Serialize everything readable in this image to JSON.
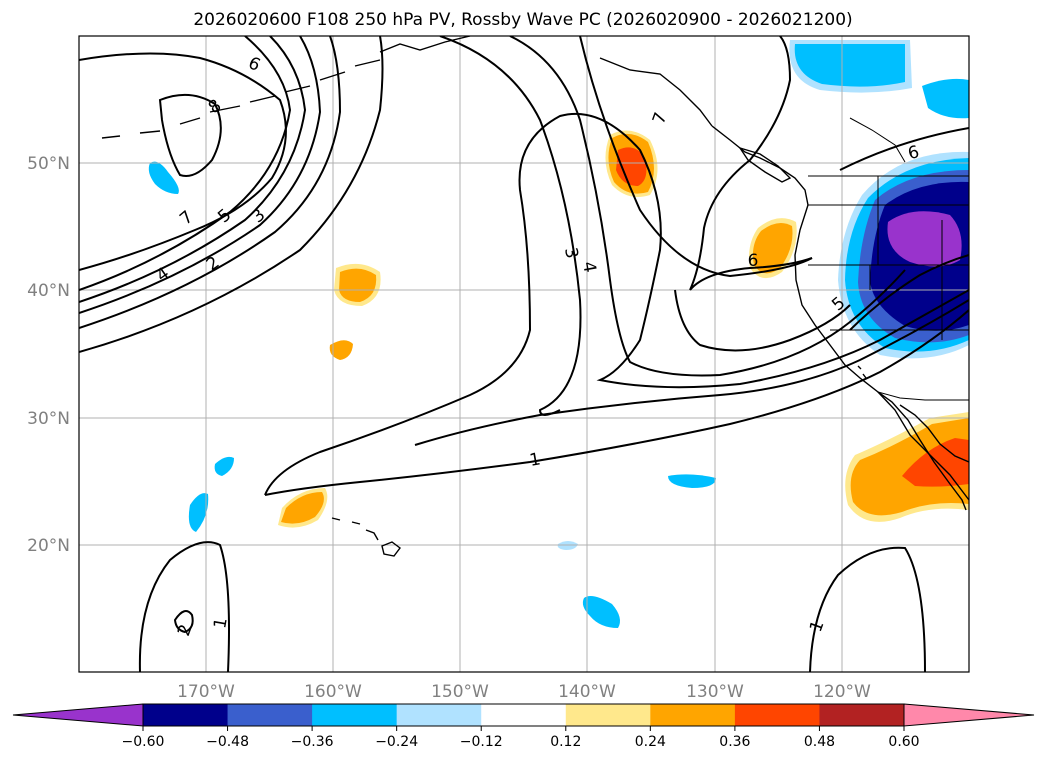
{
  "chart_data": {
    "type": "contour_map",
    "title": "2026020600 F108 250 hPa PV, Rossby Wave PC (2026020900 - 2026021200)",
    "projection": "plate carree",
    "lon_range": [
      -180,
      -110
    ],
    "lat_range": [
      10,
      60
    ],
    "x_ticks": [
      {
        "lon": -170,
        "label": "170°W"
      },
      {
        "lon": -160,
        "label": "160°W"
      },
      {
        "lon": -150,
        "label": "150°W"
      },
      {
        "lon": -140,
        "label": "140°W"
      },
      {
        "lon": -130,
        "label": "130°W"
      },
      {
        "lon": -120,
        "label": "120°W"
      }
    ],
    "y_ticks": [
      {
        "lat": 50,
        "label": "50°N"
      },
      {
        "lat": 40,
        "label": "40°N"
      },
      {
        "lat": 30,
        "label": "30°N"
      },
      {
        "lat": 20,
        "label": "20°N"
      }
    ],
    "gridlines": true,
    "contour_field": "250 hPa PV (PVU)",
    "contour_levels": [
      1,
      2,
      3,
      4,
      5,
      6,
      7,
      8
    ],
    "contour_labels": [
      "6",
      "8",
      "7",
      "5",
      "3",
      "4",
      "2",
      "3",
      "4",
      "7",
      "6",
      "6",
      "5",
      "1",
      "1",
      "2",
      "1"
    ],
    "shaded_field": "Rossby Wave PC",
    "colorbar": {
      "extend": "both",
      "boundaries": [
        -0.6,
        -0.48,
        -0.36,
        -0.24,
        -0.12,
        0.12,
        0.24,
        0.36,
        0.48,
        0.6
      ],
      "tick_labels": [
        "−0.60",
        "−0.48",
        "−0.36",
        "−0.24",
        "−0.12",
        "0.12",
        "0.24",
        "0.36",
        "0.48",
        "0.60"
      ],
      "colors": [
        "#9933cc",
        "#00008b",
        "#3a5fcd",
        "#00bfff",
        "#b0e2ff",
        "#ffffff",
        "#ffe88c",
        "#ffa500",
        "#ff4500",
        "#b22222",
        "#ff88aa"
      ]
    },
    "anomalies": [
      {
        "name": "pac-nw-coast-negative",
        "sign": "negative",
        "peak": -0.6,
        "center": [
          -113,
          43
        ]
      },
      {
        "name": "baja-positive",
        "sign": "positive",
        "peak": 0.48,
        "center": [
          -113,
          27
        ]
      },
      {
        "name": "gulf-alaska-positive",
        "sign": "positive",
        "peak": 0.36,
        "center": [
          -137,
          50
        ]
      },
      {
        "name": "ne-pacific-positive",
        "sign": "positive",
        "peak": 0.24,
        "center": [
          -125,
          43
        ]
      },
      {
        "name": "north-negative",
        "sign": "negative",
        "peak": -0.36,
        "center": [
          -122,
          58
        ]
      }
    ]
  }
}
